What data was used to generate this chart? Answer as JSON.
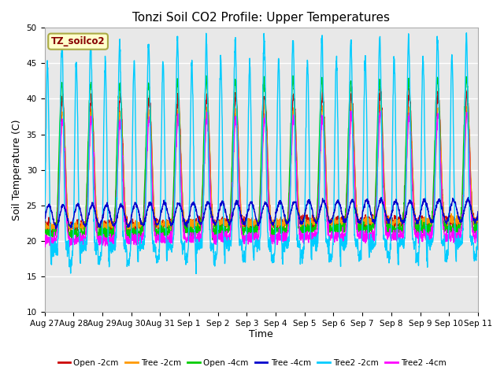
{
  "title": "Tonzi Soil CO2 Profile: Upper Temperatures",
  "xlabel": "Time",
  "ylabel": "Soil Temperature (C)",
  "ylim": [
    10,
    50
  ],
  "yticks": [
    10,
    15,
    20,
    25,
    30,
    35,
    40,
    45,
    50
  ],
  "legend_label": "TZ_soilco2",
  "series_labels": [
    "Open -2cm",
    "Tree -2cm",
    "Open -4cm",
    "Tree -4cm",
    "Tree2 -2cm",
    "Tree2 -4cm"
  ],
  "series_colors": [
    "#cc0000",
    "#ff9900",
    "#00cc00",
    "#0000cc",
    "#00ccff",
    "#ff00ff"
  ],
  "xtick_labels": [
    "Aug 27",
    "Aug 28",
    "Aug 29",
    "Aug 30",
    "Aug 31",
    "Sep 1",
    "Sep 2",
    "Sep 3",
    "Sep 4",
    "Sep 5",
    "Sep 6",
    "Sep 7",
    "Sep 8",
    "Sep 9",
    "Sep 10",
    "Sep 11"
  ],
  "n_days": 15,
  "pts_per_day": 144,
  "fig_facecolor": "#ffffff",
  "plot_bg_color": "#e8e8e8",
  "grid_color": "#ffffff",
  "title_fontsize": 11,
  "axis_label_fontsize": 9,
  "tick_fontsize": 7.5
}
